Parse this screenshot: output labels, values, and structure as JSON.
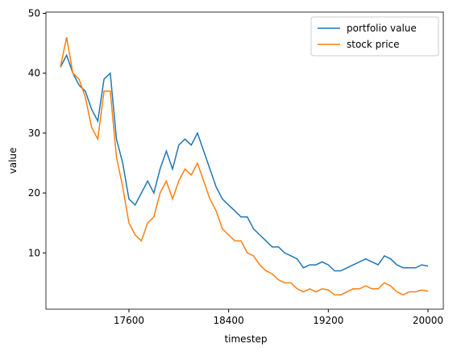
{
  "chart_data": {
    "type": "line",
    "xlabel": "timestep",
    "ylabel": "value",
    "x": [
      17050,
      17100,
      17150,
      17200,
      17250,
      17300,
      17350,
      17400,
      17450,
      17500,
      17550,
      17600,
      17650,
      17700,
      17750,
      17800,
      17850,
      17900,
      17950,
      18000,
      18050,
      18100,
      18150,
      18200,
      18250,
      18300,
      18350,
      18400,
      18450,
      18500,
      18550,
      18600,
      18650,
      18700,
      18750,
      18800,
      18850,
      18900,
      18950,
      19000,
      19050,
      19100,
      19150,
      19200,
      19250,
      19300,
      19350,
      19400,
      19450,
      19500,
      19550,
      19600,
      19650,
      19700,
      19750,
      19800,
      19850,
      19900,
      19950,
      20000
    ],
    "series": [
      {
        "name": "portfolio value",
        "color": "#1f77b4",
        "values": [
          41,
          43,
          40,
          38,
          37,
          34,
          32,
          39,
          40,
          29,
          25,
          19,
          18,
          20,
          22,
          20,
          24,
          27,
          24,
          28,
          29,
          28,
          30,
          27,
          24,
          21,
          19,
          18,
          17,
          16,
          16,
          14,
          13,
          12,
          11,
          11,
          10,
          9.5,
          9,
          7.5,
          8,
          8,
          8.5,
          8,
          7,
          7,
          7.5,
          8,
          8.5,
          9,
          8.5,
          8,
          9.5,
          9,
          8,
          7.5,
          7.5,
          7.5,
          8,
          7.8
        ]
      },
      {
        "name": "stock price",
        "color": "#ff7f0e",
        "values": [
          41,
          46,
          40,
          39,
          36,
          31,
          29,
          37,
          37,
          26,
          21,
          15,
          13,
          12,
          15,
          16,
          20,
          22,
          19,
          22,
          24,
          23,
          25,
          22,
          19,
          17,
          14,
          13,
          12,
          12,
          10,
          9.5,
          8,
          7,
          6.5,
          5.5,
          5,
          5,
          4,
          3.5,
          4,
          3.5,
          4,
          3.8,
          3,
          3,
          3.5,
          4,
          4,
          4.5,
          4,
          4,
          5,
          4.5,
          3.5,
          3,
          3.5,
          3.5,
          3.8,
          3.6
        ]
      }
    ],
    "xlim": [
      16934,
      20123
    ],
    "xticks": [
      17600,
      18400,
      19200,
      20000
    ],
    "ylim": [
      0.6,
      50.2
    ],
    "yticks": [
      10,
      20,
      30,
      40,
      50
    ],
    "legend": "upper right"
  }
}
